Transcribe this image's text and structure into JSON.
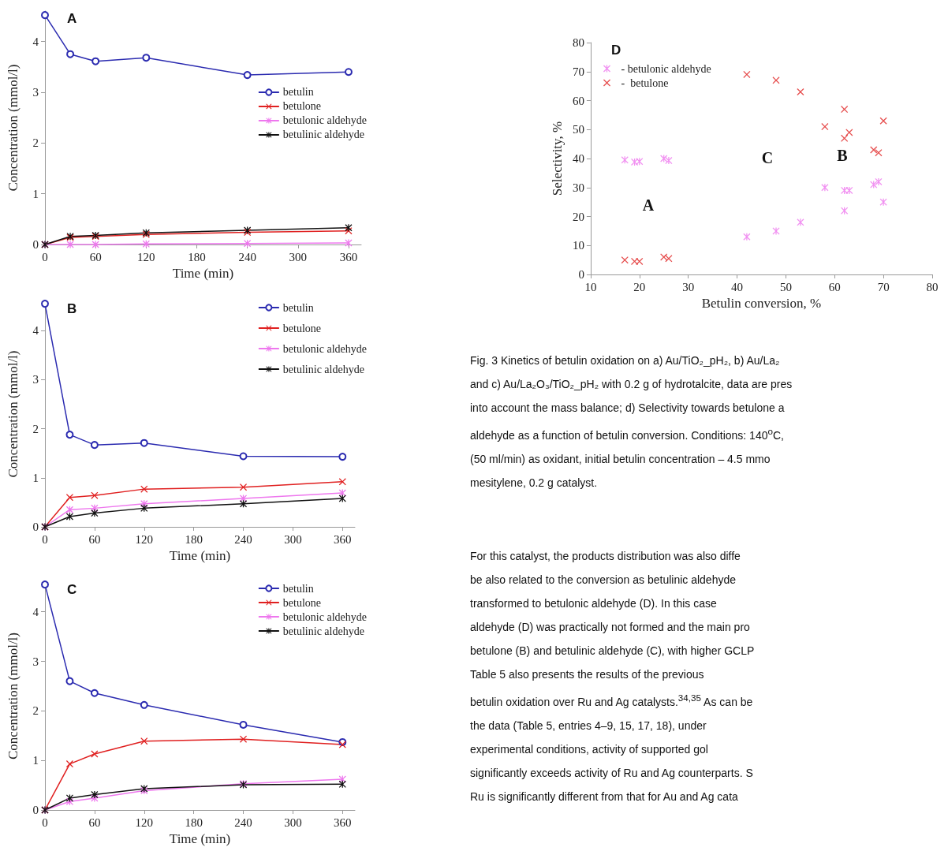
{
  "chart_data": [
    {
      "type": "line",
      "title": "A",
      "xlabel": "Time (min)",
      "ylabel": "Concentration (mmol/l)",
      "x": [
        0,
        30,
        60,
        120,
        240,
        360
      ],
      "xlim": [
        0,
        375
      ],
      "xticks": [
        0,
        60,
        120,
        180,
        240,
        300,
        360
      ],
      "ylim": [
        0,
        4.6
      ],
      "yticks": [
        0,
        1,
        2,
        3,
        4
      ],
      "grid": false,
      "legend": "right",
      "series": [
        {
          "name": "betulin",
          "color": "#2b2bb0",
          "marker": "circle",
          "values": [
            4.52,
            3.75,
            3.61,
            3.68,
            3.34,
            3.4
          ]
        },
        {
          "name": "betulone",
          "color": "#e02020",
          "marker": "cross",
          "values": [
            0,
            0.14,
            0.16,
            0.2,
            0.24,
            0.27
          ]
        },
        {
          "name": "betulonic aldehyde",
          "color": "#ee77ee",
          "marker": "star",
          "values": [
            0,
            0,
            0,
            0.01,
            0.02,
            0.03
          ]
        },
        {
          "name": "betulinic aldehyde",
          "color": "#111111",
          "marker": "star",
          "values": [
            0,
            0.16,
            0.18,
            0.23,
            0.28,
            0.33
          ]
        }
      ]
    },
    {
      "type": "line",
      "title": "B",
      "xlabel": "Time (min)",
      "ylabel": "Concentration (mmol/l)",
      "x": [
        0,
        30,
        60,
        120,
        240,
        360
      ],
      "xlim": [
        0,
        375
      ],
      "xticks": [
        0,
        60,
        120,
        180,
        240,
        300,
        360
      ],
      "ylim": [
        0,
        4.6
      ],
      "yticks": [
        0,
        1,
        2,
        3,
        4
      ],
      "grid": false,
      "legend": "top right",
      "series": [
        {
          "name": "betulin",
          "color": "#2b2bb0",
          "marker": "circle",
          "values": [
            4.55,
            1.88,
            1.67,
            1.71,
            1.44,
            1.43
          ]
        },
        {
          "name": "betulone",
          "color": "#e02020",
          "marker": "cross",
          "values": [
            0,
            0.6,
            0.64,
            0.77,
            0.81,
            0.92
          ]
        },
        {
          "name": "betulonic aldehyde",
          "color": "#ee77ee",
          "marker": "star",
          "values": [
            0,
            0.35,
            0.38,
            0.47,
            0.58,
            0.69
          ]
        },
        {
          "name": "betulinic aldehyde",
          "color": "#111111",
          "marker": "star",
          "values": [
            0,
            0.21,
            0.28,
            0.38,
            0.47,
            0.58
          ]
        }
      ]
    },
    {
      "type": "line",
      "title": "C",
      "xlabel": "Time (min)",
      "ylabel": "Concentration (mmol/l)",
      "x": [
        0,
        30,
        60,
        120,
        240,
        360
      ],
      "xlim": [
        0,
        375
      ],
      "xticks": [
        0,
        60,
        120,
        180,
        240,
        300,
        360
      ],
      "ylim": [
        0,
        4.6
      ],
      "yticks": [
        0,
        1,
        2,
        3,
        4
      ],
      "grid": false,
      "legend": "top right",
      "series": [
        {
          "name": "betulin",
          "color": "#2b2bb0",
          "marker": "circle",
          "values": [
            4.55,
            2.6,
            2.36,
            2.12,
            1.72,
            1.37
          ]
        },
        {
          "name": "betulone",
          "color": "#e02020",
          "marker": "cross",
          "values": [
            0,
            0.93,
            1.13,
            1.39,
            1.43,
            1.32
          ]
        },
        {
          "name": "betulonic aldehyde",
          "color": "#ee77ee",
          "marker": "star",
          "values": [
            0,
            0.17,
            0.24,
            0.39,
            0.53,
            0.62
          ]
        },
        {
          "name": "betulinic aldehyde",
          "color": "#111111",
          "marker": "star",
          "values": [
            0,
            0.24,
            0.31,
            0.43,
            0.51,
            0.52
          ]
        }
      ]
    },
    {
      "type": "scatter",
      "title": "D",
      "xlabel": "Betulin conversion, %",
      "ylabel": "Selectivity, %",
      "xlim": [
        10,
        80
      ],
      "xticks": [
        10,
        20,
        30,
        40,
        50,
        60,
        70,
        80
      ],
      "ylim": [
        0,
        80
      ],
      "yticks": [
        0,
        10,
        20,
        30,
        40,
        50,
        60,
        70,
        80
      ],
      "grid": false,
      "legend": "top left",
      "annotations": [
        "A",
        "B",
        "C"
      ],
      "series": [
        {
          "name": "- betulonic aldehyde",
          "color": "#ee77ee",
          "marker": "star",
          "x": [
            17,
            19,
            20,
            25,
            26,
            42,
            48,
            53,
            58,
            62,
            63,
            68,
            69,
            62,
            70
          ],
          "values": [
            39.5,
            38.8,
            39,
            40,
            39.3,
            13,
            15,
            18,
            30,
            29,
            29,
            31,
            32,
            22,
            25
          ]
        },
        {
          "name": "-  betulone",
          "color": "#e02020",
          "marker": "cross",
          "x": [
            17,
            19,
            20,
            25,
            26,
            42,
            48,
            53,
            58,
            62,
            62,
            63,
            68,
            69,
            70
          ],
          "values": [
            5,
            4.5,
            4.5,
            6,
            5.5,
            69,
            67,
            63,
            51,
            57,
            47,
            49,
            43,
            42,
            53
          ]
        }
      ]
    },
    {
      "type": "other",
      "annotations": [
        "Fig. 3 Kinetics of betulin oxidation on a) Au/TiO₂_pH₂, b) Au/La₂",
        "and c) Au/La₂O₃/TiO₂_pH₂ with 0.2 g of hydrotalcite, data are pres",
        "into account the mass balance; d) Selectivity towards betulone a",
        "aldehyde as a function of betulin conversion. Conditions: 140$^{o}$C,",
        "(50 ml/min) as oxidant, initial betulin concentration – 4.5 mmo",
        "mesitylene, 0.2 g catalyst."
      ]
    },
    {
      "type": "other",
      "annotations": [
        "For this catalyst, the products distribution was also diffe",
        "be also related to the conversion as betulinic aldehyde",
        "transformed to betulonic aldehyde (D). In this case",
        "aldehyde (D) was practically not formed and the main pro",
        "betulone (B) and betulinic aldehyde (C), with higher GCLP",
        "Table 5 also presents the results of the previous",
        "betulin oxidation over Ru and Ag catalysts.$^{34,35}$ As can be",
        "the data (Table 5, entries 4–9, 15, 17, 18), under",
        "experimental conditions, activity of supported gol",
        "significantly exceeds activity of Ru and Ag counterparts. S",
        "Ru is significantly different from that for Au and Ag cata"
      ]
    }
  ]
}
